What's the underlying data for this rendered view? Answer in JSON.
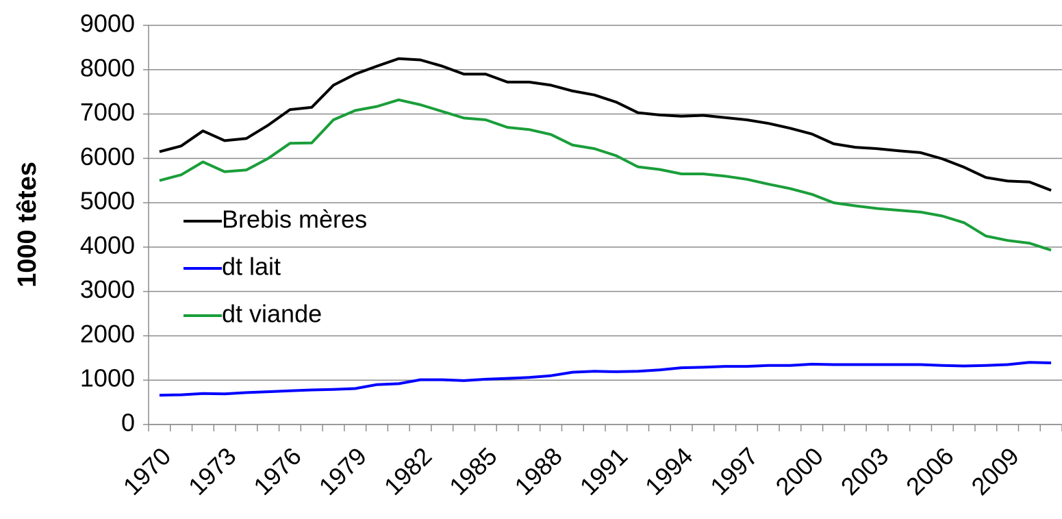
{
  "chart_data": {
    "type": "line",
    "ylabel": "1000 têtes",
    "categories": [
      "1970",
      null,
      null,
      "1973",
      null,
      null,
      "1976",
      null,
      null,
      "1979",
      null,
      null,
      "1982",
      null,
      null,
      "1985",
      null,
      null,
      "1988",
      null,
      null,
      "1991",
      null,
      null,
      "1994",
      null,
      null,
      "1997",
      null,
      null,
      "2000",
      null,
      null,
      "2003",
      null,
      null,
      "2006",
      null,
      null,
      "2009",
      null,
      null
    ],
    "series": [
      {
        "name": "Brebis mères",
        "color": "#000000",
        "values": [
          6150,
          6280,
          6620,
          6400,
          6450,
          6750,
          7100,
          7150,
          7650,
          7900,
          8080,
          8250,
          8220,
          8080,
          7900,
          7900,
          7720,
          7720,
          7650,
          7520,
          7430,
          7270,
          7030,
          6980,
          6950,
          6970,
          6920,
          6870,
          6790,
          6680,
          6550,
          6330,
          6250,
          6220,
          6170,
          6130,
          5990,
          5800,
          5570,
          5490,
          5470,
          5280
        ]
      },
      {
        "name": "dt lait",
        "color": "#0000ff",
        "values": [
          660,
          670,
          700,
          690,
          720,
          740,
          760,
          780,
          790,
          810,
          900,
          920,
          1010,
          1010,
          990,
          1020,
          1040,
          1060,
          1100,
          1180,
          1200,
          1190,
          1200,
          1230,
          1280,
          1290,
          1310,
          1310,
          1330,
          1330,
          1360,
          1350,
          1350,
          1350,
          1350,
          1350,
          1330,
          1320,
          1330,
          1350,
          1400,
          1390
        ]
      },
      {
        "name": "dt viande",
        "color": "#1a9e3a",
        "values": [
          5500,
          5630,
          5920,
          5700,
          5740,
          6000,
          6340,
          6350,
          6870,
          7080,
          7170,
          7320,
          7210,
          7060,
          6910,
          6870,
          6700,
          6650,
          6540,
          6300,
          6220,
          6060,
          5810,
          5750,
          5650,
          5650,
          5600,
          5530,
          5420,
          5320,
          5190,
          5000,
          4930,
          4870,
          4830,
          4790,
          4700,
          4550,
          4250,
          4150,
          4090,
          3930
        ]
      }
    ],
    "ylim": [
      0,
      9000
    ],
    "yticks": [
      0,
      1000,
      2000,
      3000,
      4000,
      5000,
      6000,
      7000,
      8000,
      9000
    ],
    "grid": true,
    "legend": "left"
  }
}
